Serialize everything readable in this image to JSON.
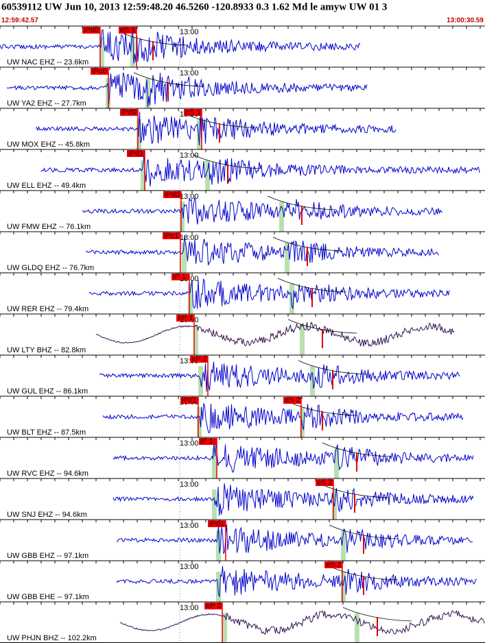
{
  "header": {
    "title": "60539112 UW Jun 10, 2013 12:59:48.20   46.5260 -120.8933  0.3 1.62 Md le amyw UW 01   3",
    "start_time": "12:59:42.57",
    "end_time": "13:00:30.59"
  },
  "panels": [
    {
      "label": "UW NAC EHZ -- 23.6km",
      "time_label": "13:00",
      "picks": [
        "iPd0",
        "eS 1"
      ]
    },
    {
      "label": "UW YA2 EHZ -- 27.7km",
      "time_label": "13:00",
      "picks": [
        "iPc0"
      ]
    },
    {
      "label": "UW MOX EHZ -- 45.8km",
      "time_label": "13:00",
      "picks": [
        "iPd0",
        "eS 1"
      ]
    },
    {
      "label": "UW ELL EHZ -- 49.4km",
      "time_label": "13:00",
      "picks": [
        "iPd1"
      ]
    },
    {
      "label": "UW FMW EHZ -- 76.1km",
      "time_label": "13:00",
      "picks": [
        "iPd0"
      ]
    },
    {
      "label": "UW GLDQ EHZ -- 76.7km",
      "time_label": "13:00",
      "picks": [
        "iPc1"
      ]
    },
    {
      "label": "UW RER EHZ -- 79.4km",
      "time_label": "13:00",
      "picks": [
        "iP 1"
      ]
    },
    {
      "label": "UW LTY BHZ -- 82.8km",
      "time_label": "13:00",
      "picks": [
        "eP 1"
      ]
    },
    {
      "label": "UW GUL EHZ -- 86.1km",
      "time_label": "13:00",
      "picks": [
        "eP 2"
      ]
    },
    {
      "label": "UW BLT EHZ -- 87.5km",
      "time_label": "13:00",
      "picks": [
        "iPc1",
        "eS 2"
      ]
    },
    {
      "label": "UW RVC EHZ -- 94.6km",
      "time_label": "13:00",
      "picks": [
        "iP 1"
      ]
    },
    {
      "label": "UW SNJ EHZ -- 94.6km",
      "time_label": "13:00",
      "picks": [
        "eS 2"
      ]
    },
    {
      "label": "UW GBB EHZ -- 97.1km",
      "time_label": "13:00",
      "picks": [
        "iPd1"
      ]
    },
    {
      "label": "UW GBB EHE -- 97.1km",
      "time_label": "13:00",
      "picks": [
        "eS 2"
      ]
    },
    {
      "label": "UW PHJN BHZ -- 102.2km",
      "time_label": "13:00",
      "picks": [
        "eP 2"
      ]
    }
  ]
}
